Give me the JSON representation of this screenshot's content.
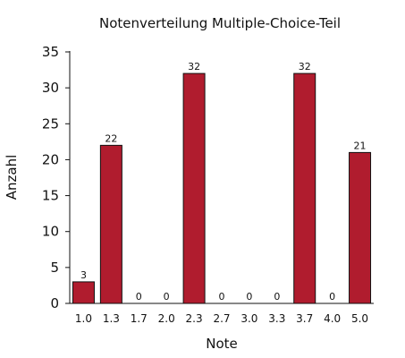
{
  "chart_data": {
    "type": "bar",
    "title": "Notenverteilung Multiple-Choice-Teil",
    "xlabel": "Note",
    "ylabel": "Anzahl",
    "categories": [
      "1.0",
      "1.3",
      "1.7",
      "2.0",
      "2.3",
      "2.7",
      "3.0",
      "3.3",
      "3.7",
      "4.0",
      "5.0"
    ],
    "values": [
      3,
      22,
      0,
      0,
      32,
      0,
      0,
      0,
      32,
      0,
      21
    ],
    "ylim": [
      0,
      35
    ],
    "yticks": [
      0,
      5,
      10,
      15,
      20,
      25,
      30,
      35
    ],
    "bar_color": "#b01c2e",
    "grid": false,
    "data_labels": true
  }
}
